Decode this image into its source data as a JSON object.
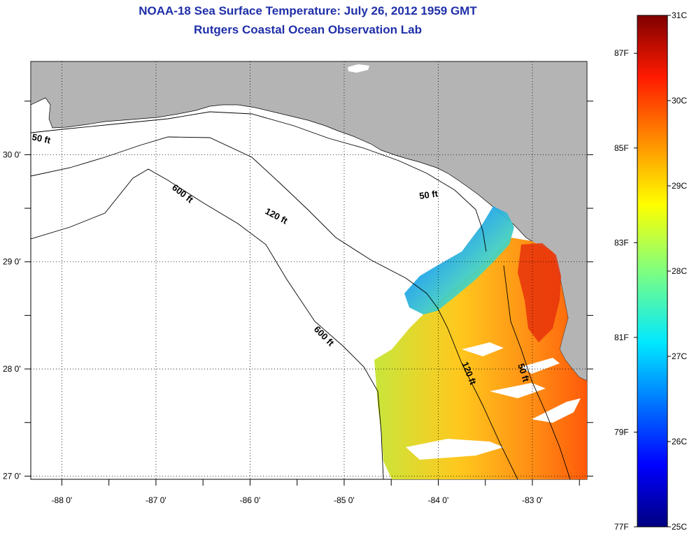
{
  "header": {
    "title": "NOAA-18 Sea Surface Temperature:  July 26, 2012 1959 GMT",
    "subtitle": "Rutgers Coastal Ocean Observation Lab"
  },
  "map": {
    "lon_ticks": [
      "-88 0'",
      "-87 0'",
      "-86 0'",
      "-85 0'",
      "-84 0'",
      "-83 0'"
    ],
    "lat_ticks": [
      "30 0'",
      "29 0'",
      "28 0'",
      "27 0'"
    ],
    "lon_range": [
      -88.33,
      -82.42
    ],
    "lat_range": [
      26.97,
      30.87
    ],
    "contours": [
      {
        "label": "50 ft"
      },
      {
        "label": "120 ft"
      },
      {
        "label": "600 ft"
      },
      {
        "label": "50 ft"
      },
      {
        "label": "600 ft"
      },
      {
        "label": "120 ft"
      },
      {
        "label": "50 ft"
      }
    ]
  },
  "colorbar": {
    "fahrenheit": [
      "87F",
      "85F",
      "83F",
      "81F",
      "79F",
      "77F"
    ],
    "celsius": [
      "31C",
      "30C",
      "29C",
      "28C",
      "27C",
      "26C",
      "25C"
    ],
    "range_c": [
      25,
      31
    ]
  },
  "colors": {
    "land": "#b4b4b4",
    "title": "#1f2fa8"
  }
}
